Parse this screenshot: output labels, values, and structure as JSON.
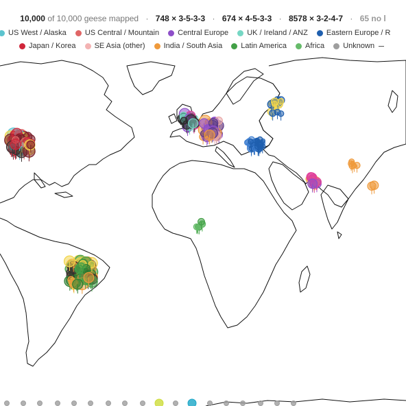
{
  "stats": {
    "mapped_count": "10,000",
    "of_text": "of 10,000 geese mapped",
    "combos": [
      "748 × 3-5-3-3",
      "674 × 4-5-3-3",
      "8578 × 3-2-4-7"
    ],
    "tail": "65 no l"
  },
  "legend": [
    {
      "label": "US West / Alaska",
      "color": "#5cc4cf",
      "icon": "legend-dot"
    },
    {
      "label": "US Central / Mountain",
      "color": "#e06666",
      "icon": "legend-dot"
    },
    {
      "label": "Central Europe",
      "color": "#8e4fc9",
      "icon": "legend-dot"
    },
    {
      "label": "UK / Ireland / ANZ",
      "color": "#76d7c4",
      "icon": "legend-dot"
    },
    {
      "label": "Eastern Europe / R",
      "color": "#1f5fae",
      "icon": "legend-dot"
    },
    {
      "label": "Japan / Korea",
      "color": "#d0263a",
      "icon": "legend-dot"
    },
    {
      "label": "SE Asia (other)",
      "color": "#f3b3b3",
      "icon": "legend-dot"
    },
    {
      "label": "India / South Asia",
      "color": "#ef9a3c",
      "icon": "legend-dot"
    },
    {
      "label": "Latin America",
      "color": "#43a047",
      "icon": "legend-dot"
    },
    {
      "label": "Africa",
      "color": "#66bb6a",
      "icon": "legend-dot"
    },
    {
      "label": "Unknown",
      "color": "#9e9e9e",
      "icon": "legend-dot"
    }
  ],
  "colors": {
    "accent_yellow": "#f2d54a",
    "pink": "#e0409a",
    "land_stroke": "#111111",
    "teal": "#1aa6c7",
    "lime": "#cddc39"
  }
}
